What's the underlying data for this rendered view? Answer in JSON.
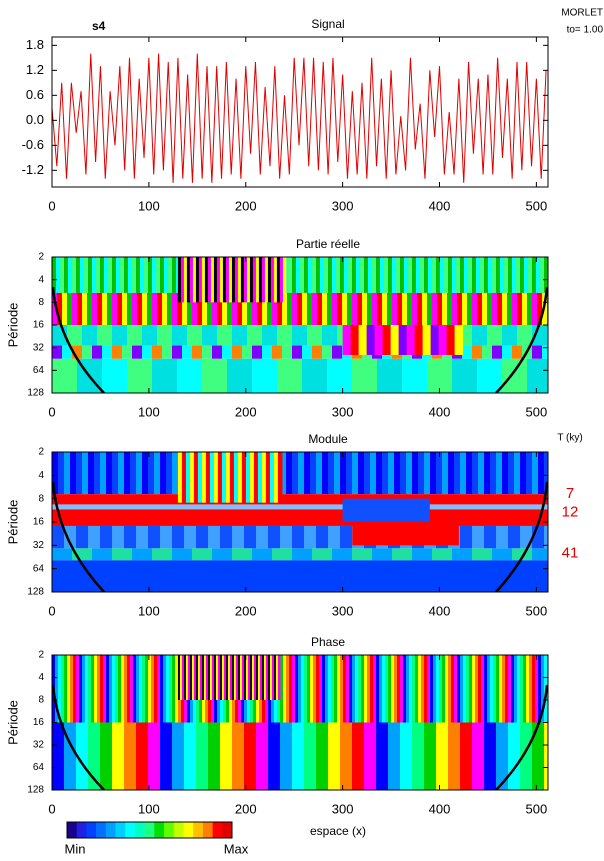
{
  "chart_data": [
    {
      "type": "line",
      "label": "s4",
      "title": "Signal",
      "method": "MORLET",
      "param": "to= 1.00",
      "color": "#e00000",
      "x": [
        0,
        5,
        10,
        15,
        20,
        25,
        30,
        35,
        40,
        45,
        50,
        55,
        60,
        65,
        70,
        75,
        80,
        85,
        90,
        95,
        100,
        105,
        110,
        115,
        120,
        125,
        130,
        135,
        140,
        145,
        150,
        155,
        160,
        165,
        170,
        175,
        180,
        185,
        190,
        195,
        200,
        205,
        210,
        215,
        220,
        225,
        230,
        235,
        240,
        245,
        250,
        255,
        260,
        265,
        270,
        275,
        280,
        285,
        290,
        295,
        300,
        305,
        310,
        315,
        320,
        325,
        330,
        335,
        340,
        345,
        350,
        355,
        360,
        365,
        370,
        375,
        380,
        385,
        390,
        395,
        400,
        405,
        410,
        415,
        420,
        425,
        430,
        435,
        440,
        445,
        450,
        455,
        460,
        465,
        470,
        475,
        480,
        485,
        490,
        495,
        500,
        505,
        510
      ],
      "values": [
        0.3,
        -1.1,
        0.9,
        -1.4,
        0.9,
        -0.3,
        0.7,
        -1.3,
        1.6,
        -1.0,
        1.3,
        -1.4,
        0.7,
        -0.6,
        1.3,
        -1.2,
        1.5,
        -1.4,
        1.0,
        -0.9,
        1.5,
        -1.3,
        1.6,
        -1.2,
        1.4,
        -1.5,
        1.5,
        -1.4,
        1.1,
        -1.5,
        1.6,
        -1.4,
        1.3,
        -1.5,
        1.3,
        -1.4,
        1.4,
        -1.3,
        1.0,
        -1.4,
        1.3,
        -0.8,
        1.4,
        -1.3,
        0.8,
        -1.1,
        1.3,
        -1.4,
        0.6,
        -1.3,
        1.5,
        -0.6,
        1.5,
        -1.1,
        1.5,
        -1.2,
        1.4,
        -1.3,
        1.5,
        -1.0,
        1.1,
        -1.4,
        0.7,
        -1.3,
        0.9,
        -1.4,
        1.5,
        -1.1,
        1.0,
        -1.4,
        1.2,
        -1.3,
        0.1,
        -1.2,
        1.5,
        -0.7,
        0.4,
        -1.4,
        1.2,
        -0.4,
        1.3,
        -1.3,
        0.2,
        -1.3,
        1.0,
        -1.5,
        1.4,
        -0.8,
        1.0,
        -1.3,
        1.1,
        -1.3,
        1.5,
        -0.9,
        1.0,
        -1.4,
        1.4,
        -1.2,
        1.4,
        -1.1,
        1.0,
        -1.4,
        1.2
      ],
      "xlim": [
        0,
        512
      ],
      "xticks": [
        0,
        100,
        200,
        300,
        400,
        500
      ],
      "ylim": [
        -1.6,
        2.0
      ],
      "yticks": [
        {
          "value": -1.2,
          "label": "-1.2"
        },
        -0.6,
        {
          "value": 0,
          "label": "0.0"
        },
        0.6,
        1.2,
        1.8
      ]
    },
    {
      "type": "scalogram",
      "title": "Partie réelle",
      "ylabel": "Période",
      "log_scale_y": true,
      "ylim": [
        2,
        128
      ],
      "yticks": [
        2,
        4,
        8,
        16,
        32,
        64,
        128
      ],
      "xlim": [
        0,
        512
      ],
      "xticks": [
        0,
        100,
        200,
        300,
        400,
        500
      ]
    },
    {
      "type": "scalogram",
      "title": "Module",
      "ylabel": "Période",
      "log_scale_y": true,
      "right_label": "T (ky)",
      "annotations": [
        7,
        12,
        41
      ],
      "annotation_color": "#e00000",
      "ylim": [
        2,
        128
      ],
      "yticks": [
        2,
        4,
        8,
        16,
        32,
        64,
        128
      ],
      "xlim": [
        0,
        512
      ],
      "xticks": [
        0,
        100,
        200,
        300,
        400,
        500
      ]
    },
    {
      "type": "scalogram",
      "title": "Phase",
      "ylabel": "Période",
      "log_scale_y": true,
      "xlabel": "espace (x)",
      "ylim": [
        2,
        128
      ],
      "yticks": [
        2,
        4,
        8,
        16,
        32,
        64,
        128
      ],
      "xlim": [
        0,
        512
      ],
      "xticks": [
        0,
        100,
        200,
        300,
        400,
        500
      ]
    }
  ],
  "colorbar": {
    "colors": [
      "#1a008c",
      "#2020e0",
      "#0040ff",
      "#0070ff",
      "#00a0ff",
      "#00d0ff",
      "#00ffff",
      "#00ffc0",
      "#20ff80",
      "#00e000",
      "#60ff00",
      "#c0ff00",
      "#ffff00",
      "#ffc000",
      "#ff8000",
      "#ff0000",
      "#e00000"
    ],
    "min_label": "Min",
    "max_label": "Max"
  }
}
